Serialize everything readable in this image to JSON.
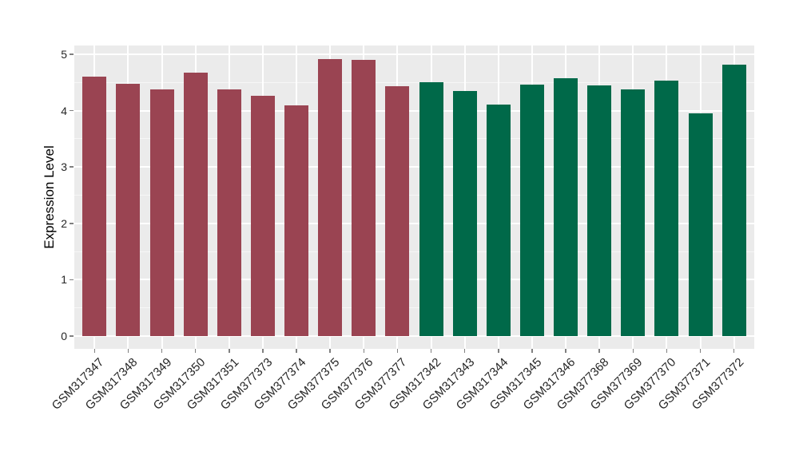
{
  "figure": {
    "background_color": "#FFFFFF",
    "panel_background_color": "#EBEBEB",
    "gridline_color": "#FFFFFF",
    "tick_color": "#808080",
    "text_color": "#262626"
  },
  "chart_data": {
    "type": "bar",
    "title": "",
    "xlabel": "",
    "ylabel": "Expression Level",
    "ylim": [
      -0.25,
      5.16
    ],
    "yticks": [
      0,
      1,
      2,
      3,
      4,
      5
    ],
    "grid": "major white + minor faint, gray panel (ggplot style)",
    "legend": "none",
    "categories": [
      "GSM317347",
      "GSM317348",
      "GSM317349",
      "GSM317350",
      "GSM317351",
      "GSM377373",
      "GSM377374",
      "GSM377375",
      "GSM377376",
      "GSM377377",
      "GSM317342",
      "GSM317343",
      "GSM317344",
      "GSM317345",
      "GSM317346",
      "GSM377368",
      "GSM377369",
      "GSM377370",
      "GSM377371",
      "GSM377372"
    ],
    "values": [
      4.6,
      4.48,
      4.37,
      4.67,
      4.38,
      4.26,
      4.1,
      4.91,
      4.9,
      4.43,
      4.51,
      4.35,
      4.11,
      4.46,
      4.58,
      4.45,
      4.37,
      4.53,
      3.95,
      4.82
    ],
    "group_of_each_bar": [
      0,
      0,
      0,
      0,
      0,
      0,
      0,
      0,
      0,
      0,
      1,
      1,
      1,
      1,
      1,
      1,
      1,
      1,
      1,
      1
    ],
    "group_colors": [
      "#9A4452",
      "#006949"
    ]
  }
}
